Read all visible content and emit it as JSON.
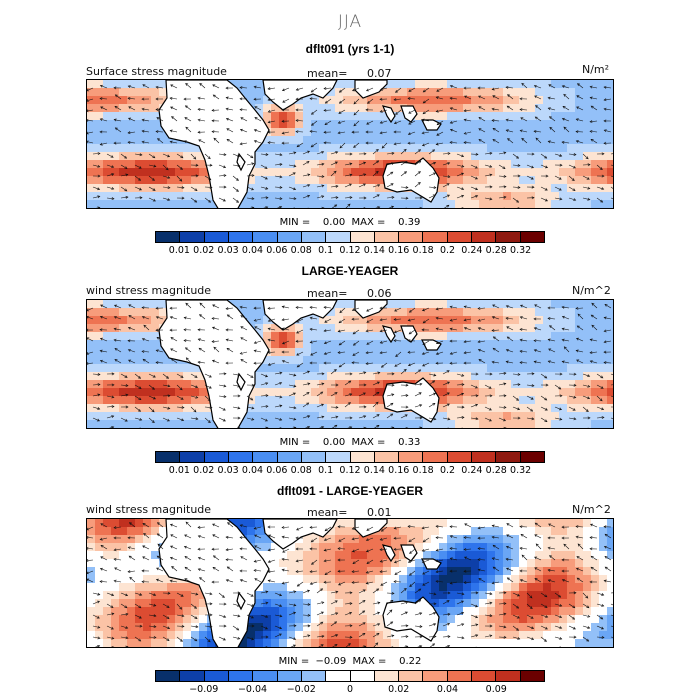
{
  "figure": {
    "season": "JJA"
  },
  "panels": [
    {
      "title": "dflt091 (yrs 1-1)",
      "left_label": "Surface stress magnitude",
      "mean_label": "mean=",
      "mean_value": "0.07",
      "units": "N/m²",
      "stats": "MIN =    0.00  MAX =    0.39",
      "palette": "sequential",
      "ticks": [
        "0.01",
        "0.02",
        "0.03",
        "0.04",
        "0.06",
        "0.08",
        "0.1",
        "0.12",
        "0.14",
        "0.16",
        "0.18",
        "0.2",
        "0.24",
        "0.28",
        "0.32"
      ]
    },
    {
      "title": "LARGE-YEAGER",
      "left_label": "wind stress magnitude",
      "mean_label": "mean=",
      "mean_value": "0.06",
      "units": "N/m^2",
      "stats": "MIN =    0.00  MAX =    0.33",
      "palette": "sequential",
      "ticks": [
        "0.01",
        "0.02",
        "0.03",
        "0.04",
        "0.06",
        "0.08",
        "0.1",
        "0.12",
        "0.14",
        "0.16",
        "0.18",
        "0.2",
        "0.24",
        "0.28",
        "0.32"
      ]
    },
    {
      "title": "dflt091 - LARGE-YEAGER",
      "left_label": "wind stress magnitude",
      "mean_label": "mean=",
      "mean_value": "0.01",
      "units": "N/m^2",
      "stats": "MIN =  −0.09  MAX =    0.22",
      "palette": "diverging",
      "ticks": [
        "−0.09",
        "−0.04",
        "−0.02",
        "0",
        "0.02",
        "0.04",
        "0.09"
      ]
    }
  ],
  "colors": {
    "sequential": [
      "#08306b",
      "#0d3fa8",
      "#1a5ad6",
      "#2e74ec",
      "#4a8ef2",
      "#6aa6f5",
      "#93c0f8",
      "#bcd8fb",
      "#fde4d2",
      "#fbc3a6",
      "#f79c7b",
      "#ee7352",
      "#dc4c32",
      "#c0301f",
      "#8f1a10",
      "#6b0000"
    ],
    "diverging": [
      "#08306b",
      "#0d3fa8",
      "#1a5ad6",
      "#2e74ec",
      "#4a8ef2",
      "#6aa6f5",
      "#93c0f8",
      "#ffffff",
      "#ffffff",
      "#fde4d2",
      "#fbc3a6",
      "#f79c7b",
      "#ee7352",
      "#dc4c32",
      "#c0301f",
      "#6b0000"
    ]
  }
}
